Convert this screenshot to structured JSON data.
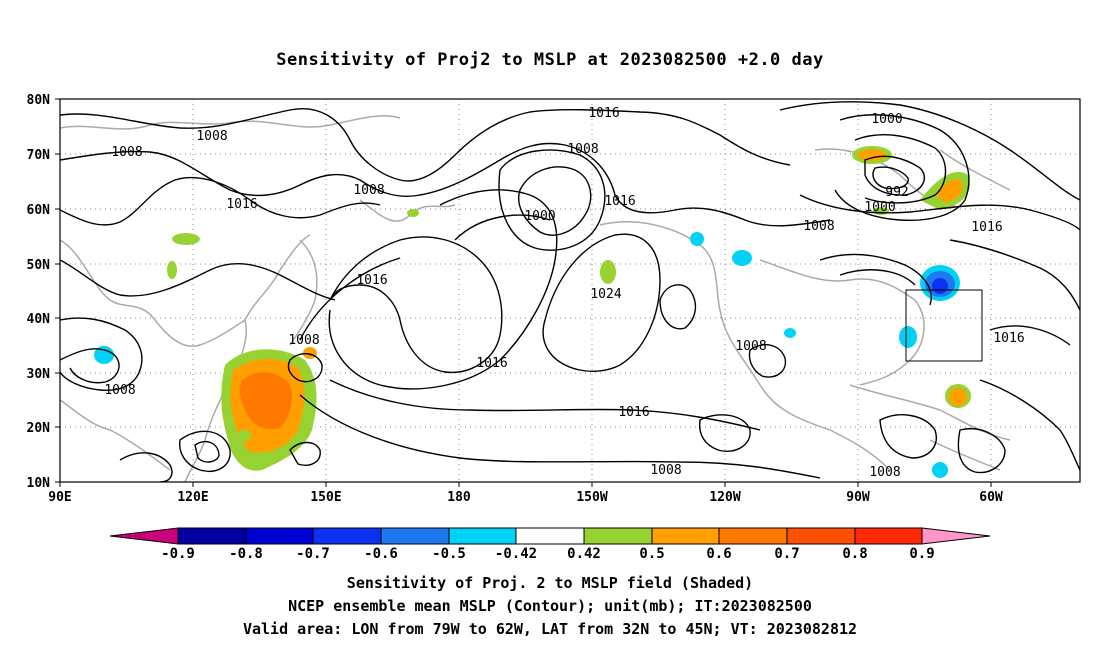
{
  "title": "Sensitivity of Proj2 to MSLP at 2023082500 +2.0 day",
  "lat_labels": [
    "80N",
    "70N",
    "60N",
    "50N",
    "40N",
    "30N",
    "20N",
    "10N"
  ],
  "lon_labels": [
    "90E",
    "120E",
    "150E",
    "180",
    "150W",
    "120W",
    "90W",
    "60W"
  ],
  "contour_labels": [
    {
      "text": "1016",
      "key": "c1"
    },
    {
      "text": "1008",
      "key": "c2"
    },
    {
      "text": "1008",
      "key": "c3"
    },
    {
      "text": "1016",
      "key": "c4"
    },
    {
      "text": "1008",
      "key": "c5"
    },
    {
      "text": "1000",
      "key": "c6"
    },
    {
      "text": "1016",
      "key": "c7"
    },
    {
      "text": "1016",
      "key": "c8"
    },
    {
      "text": "1024",
      "key": "c9"
    },
    {
      "text": "1008",
      "key": "c10"
    },
    {
      "text": "1016",
      "key": "c11"
    },
    {
      "text": "1008",
      "key": "c12"
    },
    {
      "text": "1016",
      "key": "c13"
    },
    {
      "text": "1008",
      "key": "c14"
    },
    {
      "text": "1008",
      "key": "c15"
    },
    {
      "text": "1000",
      "key": "c16"
    },
    {
      "text": "992",
      "key": "c17"
    },
    {
      "text": "1000",
      "key": "c18"
    },
    {
      "text": "1008",
      "key": "c19"
    },
    {
      "text": "1016",
      "key": "c20"
    },
    {
      "text": "1016",
      "key": "c21"
    },
    {
      "text": "1008",
      "key": "c22"
    },
    {
      "text": "1008",
      "key": "c23"
    },
    {
      "text": "1008",
      "key": "c24"
    }
  ],
  "colorbar": {
    "labels": [
      "-0.9",
      "-0.8",
      "-0.7",
      "-0.6",
      "-0.5",
      "-0.42",
      "0.42",
      "0.5",
      "0.6",
      "0.7",
      "0.8",
      "0.9"
    ],
    "colors": {
      "lt_neg09": "#c8007a",
      "neg09": "#0000a0",
      "neg08": "#0000d2",
      "neg07": "#0a32f0",
      "neg06": "#1e78f0",
      "neg05": "#1eaaf0",
      "neg042": "#00d2f5",
      "zero": "#ffffff",
      "pos042": "#96d232",
      "pos05": "#ffa000",
      "pos06": "#ff7800",
      "pos07": "#ff5000",
      "pos08": "#ff2800",
      "gt_pos09": "#ff96c8"
    }
  },
  "captions": [
    "Sensitivity of Proj. 2 to MSLP field (Shaded)",
    "NCEP ensemble mean MSLP (Contour); unit(mb); IT:2023082500",
    "Valid area: LON from 79W to 62W, LAT from 32N to 45N; VT: 2023082812"
  ]
}
